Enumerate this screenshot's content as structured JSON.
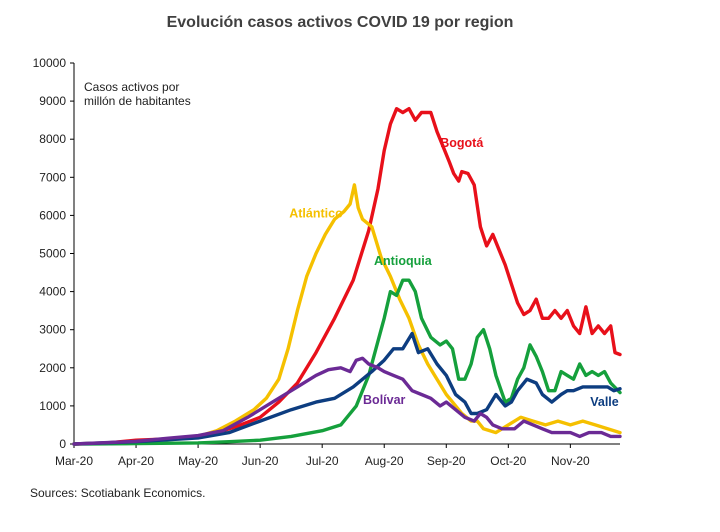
{
  "chart_data": {
    "type": "line",
    "title": "Evolución casos activos COVID 19 por region",
    "ylabel": "Casos activos por millón de habitantes",
    "ylabel_lines": [
      "Casos activos por",
      "millón de habitantes"
    ],
    "ylim": [
      0,
      10000
    ],
    "yticks": [
      0,
      1000,
      2000,
      3000,
      4000,
      5000,
      6000,
      7000,
      8000,
      9000,
      10000
    ],
    "xlim": [
      0,
      8.8
    ],
    "xticks": [
      {
        "label": "Mar-20",
        "pos": 0
      },
      {
        "label": "Apr-20",
        "pos": 1
      },
      {
        "label": "May-20",
        "pos": 2
      },
      {
        "label": "Jun-20",
        "pos": 3
      },
      {
        "label": "Jul-20",
        "pos": 4
      },
      {
        "label": "Aug-20",
        "pos": 5
      },
      {
        "label": "Sep-20",
        "pos": 6
      },
      {
        "label": "Oct-20",
        "pos": 7
      },
      {
        "label": "Nov-20",
        "pos": 8
      }
    ],
    "source": "Sources: Scotiabank Economics.",
    "series": [
      {
        "name": "Bogotá",
        "color": "#e8101a",
        "label_at": [
          6.25,
          7800
        ],
        "points": [
          [
            0,
            0
          ],
          [
            0.5,
            20
          ],
          [
            1,
            100
          ],
          [
            1.5,
            130
          ],
          [
            2,
            200
          ],
          [
            2.3,
            300
          ],
          [
            2.6,
            450
          ],
          [
            3,
            700
          ],
          [
            3.3,
            1100
          ],
          [
            3.6,
            1600
          ],
          [
            3.9,
            2400
          ],
          [
            4.2,
            3300
          ],
          [
            4.5,
            4300
          ],
          [
            4.75,
            5600
          ],
          [
            4.9,
            6700
          ],
          [
            5.0,
            7700
          ],
          [
            5.1,
            8400
          ],
          [
            5.2,
            8800
          ],
          [
            5.3,
            8700
          ],
          [
            5.4,
            8800
          ],
          [
            5.5,
            8500
          ],
          [
            5.6,
            8700
          ],
          [
            5.75,
            8700
          ],
          [
            5.85,
            8200
          ],
          [
            5.95,
            7800
          ],
          [
            6.05,
            7400
          ],
          [
            6.12,
            7100
          ],
          [
            6.2,
            6900
          ],
          [
            6.25,
            7150
          ],
          [
            6.35,
            7100
          ],
          [
            6.45,
            6800
          ],
          [
            6.55,
            5700
          ],
          [
            6.65,
            5200
          ],
          [
            6.75,
            5500
          ],
          [
            6.85,
            5100
          ],
          [
            6.95,
            4700
          ],
          [
            7.05,
            4200
          ],
          [
            7.15,
            3700
          ],
          [
            7.25,
            3400
          ],
          [
            7.35,
            3500
          ],
          [
            7.45,
            3800
          ],
          [
            7.55,
            3300
          ],
          [
            7.65,
            3300
          ],
          [
            7.75,
            3500
          ],
          [
            7.85,
            3300
          ],
          [
            7.95,
            3500
          ],
          [
            8.05,
            3100
          ],
          [
            8.15,
            2900
          ],
          [
            8.25,
            3600
          ],
          [
            8.35,
            2900
          ],
          [
            8.45,
            3100
          ],
          [
            8.55,
            2900
          ],
          [
            8.65,
            3100
          ],
          [
            8.72,
            2400
          ],
          [
            8.8,
            2350
          ]
        ]
      },
      {
        "name": "Atlántico",
        "color": "#f5c000",
        "label_at": [
          3.9,
          5950
        ],
        "points": [
          [
            0,
            0
          ],
          [
            1,
            50
          ],
          [
            1.5,
            120
          ],
          [
            2,
            200
          ],
          [
            2.3,
            350
          ],
          [
            2.6,
            600
          ],
          [
            2.9,
            900
          ],
          [
            3.1,
            1200
          ],
          [
            3.3,
            1700
          ],
          [
            3.45,
            2500
          ],
          [
            3.6,
            3500
          ],
          [
            3.75,
            4400
          ],
          [
            3.9,
            5000
          ],
          [
            4.05,
            5500
          ],
          [
            4.2,
            5900
          ],
          [
            4.35,
            6100
          ],
          [
            4.45,
            6300
          ],
          [
            4.52,
            6800
          ],
          [
            4.58,
            6200
          ],
          [
            4.65,
            5900
          ],
          [
            4.8,
            5700
          ],
          [
            4.95,
            4900
          ],
          [
            5.1,
            4400
          ],
          [
            5.25,
            3800
          ],
          [
            5.4,
            3300
          ],
          [
            5.55,
            2600
          ],
          [
            5.7,
            2100
          ],
          [
            5.85,
            1700
          ],
          [
            6.0,
            1300
          ],
          [
            6.1,
            1100
          ],
          [
            6.25,
            800
          ],
          [
            6.4,
            600
          ],
          [
            6.5,
            600
          ],
          [
            6.6,
            400
          ],
          [
            6.8,
            300
          ],
          [
            7.0,
            500
          ],
          [
            7.2,
            700
          ],
          [
            7.4,
            600
          ],
          [
            7.6,
            500
          ],
          [
            7.8,
            600
          ],
          [
            8.0,
            500
          ],
          [
            8.2,
            600
          ],
          [
            8.4,
            500
          ],
          [
            8.6,
            400
          ],
          [
            8.8,
            300
          ]
        ]
      },
      {
        "name": "Antioquia",
        "color": "#15a03c",
        "label_at": [
          5.3,
          4700
        ],
        "points": [
          [
            0,
            0
          ],
          [
            1,
            10
          ],
          [
            2,
            30
          ],
          [
            2.5,
            60
          ],
          [
            3,
            100
          ],
          [
            3.5,
            200
          ],
          [
            4,
            350
          ],
          [
            4.3,
            500
          ],
          [
            4.55,
            1000
          ],
          [
            4.75,
            1800
          ],
          [
            4.9,
            2700
          ],
          [
            5.0,
            3300
          ],
          [
            5.1,
            4000
          ],
          [
            5.2,
            3900
          ],
          [
            5.3,
            4300
          ],
          [
            5.4,
            4300
          ],
          [
            5.5,
            4000
          ],
          [
            5.6,
            3300
          ],
          [
            5.75,
            2800
          ],
          [
            5.9,
            2600
          ],
          [
            6.0,
            2700
          ],
          [
            6.1,
            2500
          ],
          [
            6.2,
            1700
          ],
          [
            6.3,
            1700
          ],
          [
            6.4,
            2100
          ],
          [
            6.5,
            2800
          ],
          [
            6.6,
            3000
          ],
          [
            6.7,
            2500
          ],
          [
            6.8,
            1800
          ],
          [
            6.95,
            1100
          ],
          [
            7.05,
            1200
          ],
          [
            7.15,
            1700
          ],
          [
            7.25,
            2000
          ],
          [
            7.35,
            2600
          ],
          [
            7.45,
            2300
          ],
          [
            7.55,
            1900
          ],
          [
            7.65,
            1400
          ],
          [
            7.75,
            1400
          ],
          [
            7.85,
            1900
          ],
          [
            7.95,
            1800
          ],
          [
            8.05,
            1700
          ],
          [
            8.15,
            2100
          ],
          [
            8.25,
            1800
          ],
          [
            8.35,
            1900
          ],
          [
            8.45,
            1800
          ],
          [
            8.55,
            1900
          ],
          [
            8.65,
            1600
          ],
          [
            8.8,
            1350
          ]
        ]
      },
      {
        "name": "Valle",
        "color": "#0d3d80",
        "label_at": [
          8.55,
          1000
        ],
        "points": [
          [
            0,
            0
          ],
          [
            1,
            60
          ],
          [
            1.5,
            110
          ],
          [
            2,
            160
          ],
          [
            2.5,
            300
          ],
          [
            3,
            600
          ],
          [
            3.5,
            900
          ],
          [
            3.9,
            1100
          ],
          [
            4.2,
            1200
          ],
          [
            4.5,
            1500
          ],
          [
            4.8,
            1900
          ],
          [
            5.0,
            2200
          ],
          [
            5.15,
            2500
          ],
          [
            5.3,
            2500
          ],
          [
            5.45,
            2900
          ],
          [
            5.55,
            2400
          ],
          [
            5.7,
            2500
          ],
          [
            5.85,
            2100
          ],
          [
            6.0,
            1800
          ],
          [
            6.15,
            1300
          ],
          [
            6.3,
            1100
          ],
          [
            6.4,
            800
          ],
          [
            6.5,
            800
          ],
          [
            6.65,
            900
          ],
          [
            6.8,
            1300
          ],
          [
            6.95,
            1000
          ],
          [
            7.05,
            1100
          ],
          [
            7.15,
            1400
          ],
          [
            7.3,
            1700
          ],
          [
            7.45,
            1600
          ],
          [
            7.55,
            1300
          ],
          [
            7.7,
            1100
          ],
          [
            7.85,
            1300
          ],
          [
            7.95,
            1400
          ],
          [
            8.05,
            1400
          ],
          [
            8.2,
            1500
          ],
          [
            8.35,
            1500
          ],
          [
            8.5,
            1500
          ],
          [
            8.6,
            1500
          ],
          [
            8.7,
            1400
          ],
          [
            8.8,
            1450
          ]
        ]
      },
      {
        "name": "Bolívar",
        "color": "#6b2a95",
        "label_at": [
          5.0,
          1050
        ],
        "points": [
          [
            0,
            0
          ],
          [
            1,
            70
          ],
          [
            1.5,
            150
          ],
          [
            2,
            220
          ],
          [
            2.4,
            350
          ],
          [
            2.8,
            700
          ],
          [
            3.2,
            1100
          ],
          [
            3.6,
            1500
          ],
          [
            3.9,
            1800
          ],
          [
            4.1,
            1950
          ],
          [
            4.3,
            2000
          ],
          [
            4.45,
            1900
          ],
          [
            4.55,
            2200
          ],
          [
            4.65,
            2250
          ],
          [
            4.75,
            2100
          ],
          [
            4.9,
            2000
          ],
          [
            5.0,
            1900
          ],
          [
            5.15,
            1800
          ],
          [
            5.3,
            1700
          ],
          [
            5.45,
            1400
          ],
          [
            5.6,
            1300
          ],
          [
            5.75,
            1200
          ],
          [
            5.9,
            1000
          ],
          [
            6.0,
            1100
          ],
          [
            6.15,
            900
          ],
          [
            6.3,
            700
          ],
          [
            6.45,
            600
          ],
          [
            6.55,
            800
          ],
          [
            6.65,
            700
          ],
          [
            6.75,
            500
          ],
          [
            6.9,
            400
          ],
          [
            7.0,
            400
          ],
          [
            7.1,
            400
          ],
          [
            7.25,
            600
          ],
          [
            7.4,
            500
          ],
          [
            7.55,
            400
          ],
          [
            7.7,
            300
          ],
          [
            7.85,
            300
          ],
          [
            8.0,
            300
          ],
          [
            8.15,
            200
          ],
          [
            8.3,
            300
          ],
          [
            8.5,
            300
          ],
          [
            8.65,
            200
          ],
          [
            8.8,
            200
          ]
        ]
      }
    ]
  }
}
